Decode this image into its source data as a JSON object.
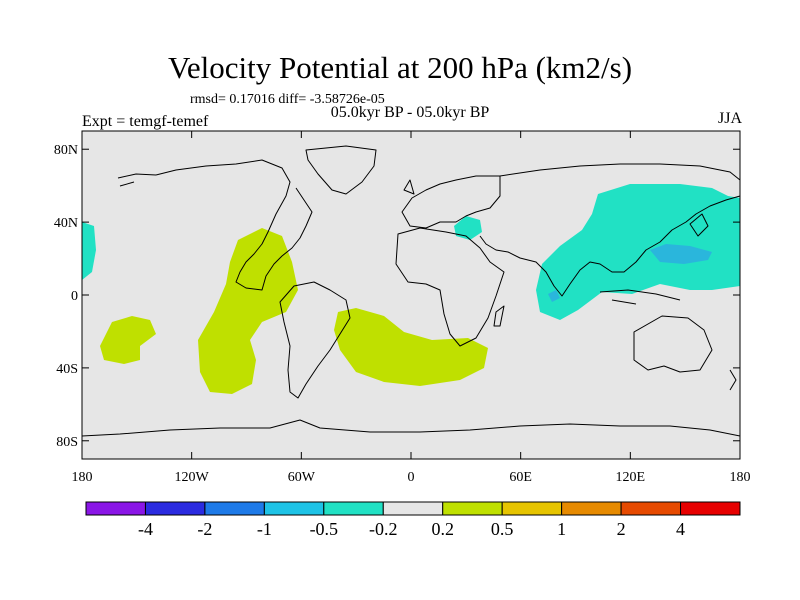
{
  "title": "Velocity Potential at 200 hPa (km2/s)",
  "stats_line": "rmsd= 0.17016 diff= -3.58726e-05",
  "period_line": "05.0kyr BP - 05.0kyr BP",
  "experiment_label": "Expt = temgf-temef",
  "season": "JJA",
  "latitude_ticks": [
    "80N",
    "40N",
    "0",
    "40S",
    "80S"
  ],
  "longitude_ticks": [
    "180",
    "120W",
    "60W",
    "0",
    "60E",
    "120E",
    "180"
  ],
  "colorbar": {
    "labels": [
      "-4",
      "-2",
      "-1",
      "-0.5",
      "-0.2",
      "0.2",
      "0.5",
      "1",
      "2",
      "4"
    ],
    "colors": [
      "#8a16e6",
      "#2b2be0",
      "#1e7ae8",
      "#1ec3e6",
      "#21e1c4",
      "#e6e6e6",
      "#bfe000",
      "#e6c400",
      "#e68a00",
      "#e64a00",
      "#e60000"
    ]
  },
  "colors": {
    "background": "#e6e6e6",
    "positive_contour": "#bfe000",
    "negative_contour": "#21e1c4",
    "negative_core": "#2ab6dc"
  }
}
